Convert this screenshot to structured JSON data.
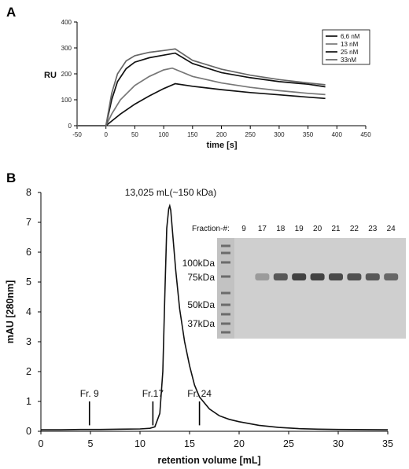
{
  "panel_a_letter": "A",
  "panel_b_letter": "B",
  "chart_data": [
    {
      "type": "line",
      "xlabel": "time [s]",
      "ylabel": "RU",
      "xlim": [
        -50,
        450
      ],
      "ylim": [
        0,
        400
      ],
      "xticks": [
        -50,
        0,
        50,
        100,
        150,
        200,
        250,
        300,
        350,
        400,
        450
      ],
      "yticks": [
        0,
        100,
        200,
        300,
        400
      ],
      "legend_position": "top-right",
      "series": [
        {
          "name": "6,6 nM",
          "color": "#111111",
          "points": [
            [
              -50,
              0
            ],
            [
              0,
              0
            ],
            [
              10,
              18
            ],
            [
              25,
              45
            ],
            [
              50,
              83
            ],
            [
              75,
              115
            ],
            [
              100,
              143
            ],
            [
              120,
              162
            ],
            [
              150,
              152
            ],
            [
              200,
              139
            ],
            [
              250,
              128
            ],
            [
              300,
              119
            ],
            [
              350,
              110
            ],
            [
              380,
              105
            ]
          ]
        },
        {
          "name": "13 nM",
          "color": "#777777",
          "points": [
            [
              -50,
              0
            ],
            [
              0,
              0
            ],
            [
              10,
              45
            ],
            [
              25,
              100
            ],
            [
              50,
              155
            ],
            [
              75,
              190
            ],
            [
              100,
              215
            ],
            [
              115,
              222
            ],
            [
              150,
              190
            ],
            [
              200,
              165
            ],
            [
              250,
              148
            ],
            [
              300,
              135
            ],
            [
              350,
              125
            ],
            [
              380,
              120
            ]
          ]
        },
        {
          "name": "25 nM",
          "color": "#111111",
          "points": [
            [
              -50,
              0
            ],
            [
              0,
              0
            ],
            [
              10,
              100
            ],
            [
              20,
              170
            ],
            [
              35,
              220
            ],
            [
              50,
              245
            ],
            [
              75,
              262
            ],
            [
              100,
              272
            ],
            [
              120,
              280
            ],
            [
              150,
              240
            ],
            [
              200,
              205
            ],
            [
              250,
              185
            ],
            [
              300,
              170
            ],
            [
              350,
              160
            ],
            [
              380,
              150
            ]
          ]
        },
        {
          "name": "33nM",
          "color": "#666666",
          "points": [
            [
              -50,
              0
            ],
            [
              0,
              0
            ],
            [
              10,
              125
            ],
            [
              20,
              200
            ],
            [
              35,
              250
            ],
            [
              50,
              270
            ],
            [
              75,
              283
            ],
            [
              100,
              290
            ],
            [
              120,
              296
            ],
            [
              150,
              252
            ],
            [
              200,
              218
            ],
            [
              250,
              195
            ],
            [
              300,
              178
            ],
            [
              350,
              165
            ],
            [
              380,
              158
            ]
          ]
        }
      ]
    },
    {
      "type": "line",
      "xlabel": "retention volume [mL]",
      "ylabel": "mAU [280nm]",
      "xlim": [
        0,
        35
      ],
      "ylim": [
        0,
        8
      ],
      "xticks": [
        0,
        5,
        10,
        15,
        20,
        25,
        30,
        35
      ],
      "yticks": [
        0,
        1,
        2,
        3,
        4,
        5,
        6,
        7,
        8
      ],
      "peak_label": "13,025 mL(~150 kDa)",
      "fraction_markers": [
        {
          "label": "Fr. 9",
          "x": 4.9
        },
        {
          "label": "Fr.17",
          "x": 11.3
        },
        {
          "label": "Fr. 24",
          "x": 16.0
        }
      ],
      "series": [
        {
          "name": "",
          "color": "#111111",
          "points": [
            [
              0,
              0.05
            ],
            [
              2,
              0.05
            ],
            [
              4,
              0.06
            ],
            [
              6,
              0.06
            ],
            [
              8,
              0.07
            ],
            [
              10,
              0.08
            ],
            [
              11,
              0.1
            ],
            [
              11.5,
              0.15
            ],
            [
              12,
              0.6
            ],
            [
              12.3,
              2.0
            ],
            [
              12.5,
              4.5
            ],
            [
              12.7,
              6.8
            ],
            [
              12.9,
              7.45
            ],
            [
              13.0,
              7.55
            ],
            [
              13.1,
              7.4
            ],
            [
              13.3,
              6.6
            ],
            [
              13.6,
              5.4
            ],
            [
              14.0,
              4.1
            ],
            [
              14.5,
              3.0
            ],
            [
              15.0,
              2.2
            ],
            [
              15.5,
              1.55
            ],
            [
              16.0,
              1.15
            ],
            [
              17.0,
              0.75
            ],
            [
              18,
              0.52
            ],
            [
              19,
              0.4
            ],
            [
              20,
              0.32
            ],
            [
              22,
              0.2
            ],
            [
              24,
              0.13
            ],
            [
              26,
              0.09
            ],
            [
              28,
              0.07
            ],
            [
              30,
              0.06
            ],
            [
              35,
              0.05
            ]
          ]
        }
      ]
    }
  ],
  "gel": {
    "fraction_header": "Fraction-#:",
    "fractions": [
      "9",
      "17",
      "18",
      "19",
      "20",
      "21",
      "22",
      "23",
      "24"
    ],
    "markers": [
      "100kDa",
      "75kDa",
      "50kDa",
      "37kDa"
    ]
  }
}
